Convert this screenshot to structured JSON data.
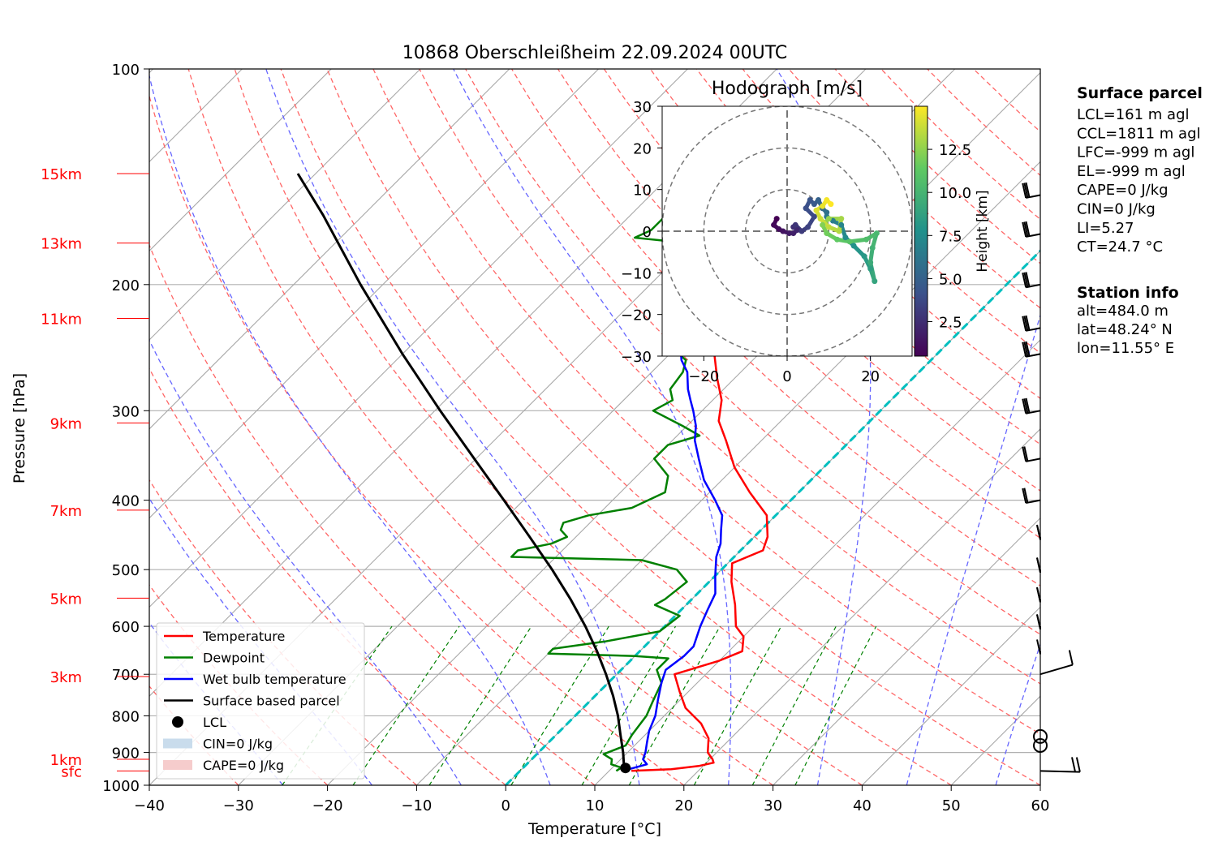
{
  "chart_data": {
    "type": "skew-t",
    "title": "10868 Oberschleißheim 22.09.2024 00UTC",
    "xlabel": "Temperature [°C]",
    "ylabel": "Pressure [hPa]",
    "xlim": [
      -40,
      60
    ],
    "ylim_hpa": [
      1000,
      100
    ],
    "x_ticks": [
      "−40",
      "−30",
      "−20",
      "−10",
      "0",
      "10",
      "20",
      "30",
      "40",
      "50",
      "60"
    ],
    "y_ticks": [
      "100",
      "200",
      "300",
      "400",
      "500",
      "600",
      "700",
      "800",
      "900",
      "1000"
    ],
    "height_labels": [
      {
        "text": "15km",
        "p": 140
      },
      {
        "text": "13km",
        "p": 175
      },
      {
        "text": "11km",
        "p": 223
      },
      {
        "text": "9km",
        "p": 312
      },
      {
        "text": "7km",
        "p": 413
      },
      {
        "text": "5km",
        "p": 548
      },
      {
        "text": "3km",
        "p": 705
      },
      {
        "text": "1km",
        "p": 920
      },
      {
        "text": "sfc",
        "p": 955
      }
    ],
    "legend": {
      "placement": "lower-left",
      "entries": [
        {
          "label": "Temperature",
          "color": "#ff0000",
          "kind": "line"
        },
        {
          "label": "Dewpoint",
          "color": "#008000",
          "kind": "line"
        },
        {
          "label": "Wet bulb temperature",
          "color": "#0000ff",
          "kind": "line"
        },
        {
          "label": "Surface based parcel",
          "color": "#000000",
          "kind": "line"
        },
        {
          "label": "LCL",
          "color": "#000000",
          "kind": "dot"
        },
        {
          "label": "CIN=0 J/kg",
          "color": "#c9dcec",
          "kind": "patch"
        },
        {
          "label": "CAPE=0 J/kg",
          "color": "#f6cccc",
          "kind": "patch"
        }
      ]
    },
    "series": [
      {
        "name": "Temperature",
        "color": "#ff0000",
        "points": [
          [
            955,
            12.5
          ],
          [
            950,
            16.8
          ],
          [
            940,
            19.5
          ],
          [
            930,
            20.8
          ],
          [
            920,
            20.3
          ],
          [
            900,
            19.0
          ],
          [
            860,
            17.5
          ],
          [
            820,
            15.0
          ],
          [
            780,
            11.5
          ],
          [
            740,
            9.0
          ],
          [
            700,
            6.5
          ],
          [
            670,
            10.0
          ],
          [
            650,
            11.5
          ],
          [
            620,
            10.0
          ],
          [
            600,
            8.0
          ],
          [
            560,
            5.5
          ],
          [
            520,
            2.5
          ],
          [
            490,
            0.5
          ],
          [
            470,
            2.5
          ],
          [
            450,
            1.5
          ],
          [
            420,
            -1.0
          ],
          [
            390,
            -5.5
          ],
          [
            360,
            -10.0
          ],
          [
            330,
            -14.0
          ],
          [
            310,
            -17.0
          ],
          [
            290,
            -19.0
          ],
          [
            270,
            -22.0
          ],
          [
            250,
            -25.0
          ],
          [
            235,
            -26.0
          ],
          [
            220,
            -29.0
          ],
          [
            205,
            -32.0
          ],
          [
            190,
            -35.5
          ],
          [
            180,
            -36.0
          ],
          [
            172,
            -33.0
          ],
          [
            165,
            -32.0
          ],
          [
            155,
            -29.0
          ],
          [
            150,
            -29.0
          ],
          [
            145,
            -29.5
          ],
          [
            140,
            -29.5
          ],
          [
            135,
            -29.0
          ],
          [
            130,
            -29.0
          ]
        ]
      },
      {
        "name": "Dewpoint",
        "color": "#008000",
        "points": [
          [
            955,
            10.8
          ],
          [
            945,
            11.0
          ],
          [
            935,
            9.5
          ],
          [
            920,
            9.0
          ],
          [
            905,
            7.5
          ],
          [
            880,
            9.0
          ],
          [
            850,
            8.5
          ],
          [
            800,
            8.0
          ],
          [
            760,
            7.0
          ],
          [
            720,
            6.0
          ],
          [
            690,
            4.0
          ],
          [
            665,
            4.0
          ],
          [
            660,
            0.0
          ],
          [
            655,
            -10.0
          ],
          [
            645,
            -10.0
          ],
          [
            630,
            -5.0
          ],
          [
            610,
            0.0
          ],
          [
            580,
            0.5
          ],
          [
            560,
            -3.5
          ],
          [
            550,
            -3.0
          ],
          [
            520,
            -2.5
          ],
          [
            500,
            -5.0
          ],
          [
            485,
            -10.0
          ],
          [
            480,
            -25.0
          ],
          [
            470,
            -25.0
          ],
          [
            460,
            -22.0
          ],
          [
            450,
            -21.0
          ],
          [
            440,
            -22.5
          ],
          [
            430,
            -23.0
          ],
          [
            420,
            -21.0
          ],
          [
            410,
            -17.0
          ],
          [
            390,
            -15.0
          ],
          [
            370,
            -16.5
          ],
          [
            350,
            -20.0
          ],
          [
            335,
            -20.0
          ],
          [
            325,
            -17.5
          ],
          [
            315,
            -20.5
          ],
          [
            300,
            -25.5
          ],
          [
            290,
            -24.5
          ],
          [
            280,
            -26.0
          ],
          [
            265,
            -26.5
          ],
          [
            255,
            -27.5
          ],
          [
            245,
            -30.5
          ],
          [
            235,
            -32.0
          ],
          [
            220,
            -33.5
          ],
          [
            210,
            -35.5
          ],
          [
            200,
            -38.5
          ],
          [
            190,
            -38.0
          ],
          [
            180,
            -41.0
          ],
          [
            175,
            -40.5
          ],
          [
            172,
            -47.0
          ],
          [
            168,
            -46.0
          ],
          [
            160,
            -46.0
          ],
          [
            150,
            -46.0
          ],
          [
            145,
            -46.0
          ],
          [
            140,
            -46.0
          ]
        ]
      },
      {
        "name": "Wet bulb temperature",
        "color": "#0000ff",
        "points": [
          [
            955,
            11.5
          ],
          [
            945,
            12.5
          ],
          [
            935,
            13.5
          ],
          [
            920,
            12.5
          ],
          [
            900,
            12.0
          ],
          [
            870,
            11.0
          ],
          [
            840,
            10.0
          ],
          [
            800,
            9.0
          ],
          [
            760,
            7.5
          ],
          [
            720,
            6.0
          ],
          [
            690,
            5.0
          ],
          [
            660,
            5.5
          ],
          [
            640,
            5.5
          ],
          [
            600,
            4.0
          ],
          [
            570,
            3.0
          ],
          [
            540,
            2.0
          ],
          [
            510,
            0.0
          ],
          [
            480,
            -2.0
          ],
          [
            460,
            -3.0
          ],
          [
            440,
            -4.5
          ],
          [
            420,
            -6.0
          ],
          [
            400,
            -8.5
          ],
          [
            375,
            -12.0
          ],
          [
            350,
            -15.0
          ],
          [
            330,
            -17.5
          ],
          [
            315,
            -19.0
          ],
          [
            300,
            -21.0
          ],
          [
            290,
            -22.5
          ],
          [
            280,
            -24.0
          ],
          [
            265,
            -26.0
          ],
          [
            255,
            -28.0
          ],
          [
            245,
            -29.5
          ],
          [
            235,
            -30.0
          ],
          [
            220,
            -31.5
          ],
          [
            205,
            -34.5
          ],
          [
            190,
            -37.5
          ],
          [
            180,
            -37.0
          ],
          [
            172,
            -34.0
          ],
          [
            165,
            -33.0
          ],
          [
            155,
            -29.5
          ],
          [
            150,
            -29.5
          ],
          [
            145,
            -29.5
          ],
          [
            140,
            -29.8
          ],
          [
            135,
            -29.3
          ],
          [
            130,
            -29.3
          ]
        ]
      },
      {
        "name": "Surface based parcel",
        "color": "#000000",
        "points": [
          [
            955,
            11.7
          ],
          [
            900,
            9.5
          ],
          [
            850,
            7.2
          ],
          [
            800,
            4.8
          ],
          [
            750,
            2.0
          ],
          [
            700,
            -1.2
          ],
          [
            650,
            -4.8
          ],
          [
            600,
            -8.9
          ],
          [
            550,
            -13.6
          ],
          [
            500,
            -19.0
          ],
          [
            450,
            -25.2
          ],
          [
            400,
            -32.2
          ],
          [
            350,
            -40.2
          ],
          [
            300,
            -49.4
          ],
          [
            250,
            -60.0
          ],
          [
            200,
            -72.5
          ],
          [
            160,
            -84.5
          ],
          [
            140,
            -92.0
          ]
        ]
      }
    ],
    "lcl": {
      "p": 946,
      "t": 11.5
    },
    "reference_lines": {
      "dry_adiabat_color": "#ff6666",
      "moist_adiabat_color": "#6666ff",
      "mixing_ratio_color": "#008000",
      "isotherm_0C_color": "#00bfbf"
    },
    "wind_barbs": [
      {
        "p": 955,
        "kind": "barb"
      },
      {
        "p": 880,
        "kind": "calm"
      },
      {
        "p": 855,
        "kind": "calm"
      },
      {
        "p": 700,
        "kind": "barb"
      },
      {
        "p": 650,
        "kind": "barb"
      },
      {
        "p": 600,
        "kind": "barb"
      },
      {
        "p": 550,
        "kind": "barb"
      },
      {
        "p": 500,
        "kind": "barb"
      },
      {
        "p": 450,
        "kind": "barb"
      },
      {
        "p": 400,
        "kind": "barb"
      },
      {
        "p": 350,
        "kind": "barb"
      },
      {
        "p": 300,
        "kind": "barb"
      },
      {
        "p": 250,
        "kind": "barb"
      },
      {
        "p": 230,
        "kind": "barb"
      },
      {
        "p": 200,
        "kind": "barb"
      },
      {
        "p": 170,
        "kind": "barb"
      },
      {
        "p": 150,
        "kind": "barb"
      }
    ],
    "hodograph": {
      "title": "Hodograph [m/s]",
      "xlim": [
        -30,
        30
      ],
      "ylim": [
        -30,
        30
      ],
      "x_ticks": [
        "−20",
        "0",
        "20"
      ],
      "y_ticks": [
        "30",
        "20",
        "10",
        "0",
        "−10",
        "−20",
        "−30"
      ],
      "rings": [
        10,
        20,
        30
      ],
      "colorbar": {
        "label": "Height [km]",
        "ticks": [
          "2.5",
          "5.0",
          "7.5",
          "10.0",
          "12.5"
        ],
        "range": [
          0.5,
          15
        ],
        "stops": [
          "#440154",
          "#3b528b",
          "#21918c",
          "#5ec962",
          "#fde725"
        ]
      },
      "points": [
        [
          -2.5,
          3.0,
          0.5
        ],
        [
          -3.2,
          1.5,
          0.8
        ],
        [
          -2.0,
          0.5,
          1.0
        ],
        [
          -1.0,
          0.0,
          1.3
        ],
        [
          0.5,
          -0.5,
          1.6
        ],
        [
          1.5,
          -0.5,
          1.9
        ],
        [
          2.5,
          0.3,
          2.2
        ],
        [
          1.5,
          1.0,
          2.5
        ],
        [
          2.0,
          1.5,
          2.8
        ],
        [
          3.5,
          0.0,
          3.1
        ],
        [
          5.0,
          1.0,
          3.4
        ],
        [
          6.5,
          3.5,
          3.7
        ],
        [
          4.5,
          5.5,
          4.0
        ],
        [
          5.5,
          7.5,
          4.3
        ],
        [
          6.5,
          6.5,
          4.6
        ],
        [
          7.5,
          7.5,
          5.0
        ],
        [
          8.5,
          5.5,
          5.4
        ],
        [
          9.5,
          4.5,
          5.8
        ],
        [
          9.5,
          3.5,
          6.2
        ],
        [
          11.0,
          2.5,
          6.6
        ],
        [
          13.0,
          1.5,
          7.0
        ],
        [
          14.0,
          -1.5,
          7.4
        ],
        [
          16.0,
          -3.5,
          7.8
        ],
        [
          18.5,
          -6.0,
          8.2
        ],
        [
          20.0,
          -9.0,
          8.6
        ],
        [
          21.0,
          -12.0,
          9.0
        ],
        [
          20.0,
          -7.5,
          9.4
        ],
        [
          20.5,
          -4.0,
          9.8
        ],
        [
          21.5,
          -0.5,
          10.2
        ],
        [
          19.0,
          -2.0,
          10.6
        ],
        [
          15.0,
          -2.5,
          11.0
        ],
        [
          12.0,
          -2.0,
          11.4
        ],
        [
          9.5,
          -0.5,
          11.8
        ],
        [
          8.5,
          1.5,
          12.2
        ],
        [
          10.0,
          3.0,
          12.6
        ],
        [
          13.0,
          3.0,
          13.0
        ],
        [
          12.5,
          0.0,
          13.3
        ],
        [
          10.0,
          1.0,
          13.6
        ],
        [
          8.0,
          3.0,
          13.9
        ],
        [
          7.0,
          5.0,
          14.2
        ],
        [
          8.5,
          6.0,
          14.5
        ],
        [
          9.5,
          7.5,
          14.8
        ],
        [
          10.5,
          6.5,
          15.0
        ]
      ]
    },
    "info_panel": {
      "surface_parcel_title": "Surface parcel",
      "surface_parcel_lines": [
        "LCL=161 m agl",
        "CCL=1811 m agl",
        "LFC=-999 m agl",
        "EL=-999 m agl",
        "CAPE=0 J/kg",
        "CIN=0 J/kg",
        "LI=5.27",
        "CT=24.7 °C"
      ],
      "station_title": "Station info",
      "station_lines": [
        "alt=484.0 m",
        "lat=48.24° N",
        "lon=11.55° E"
      ]
    }
  }
}
